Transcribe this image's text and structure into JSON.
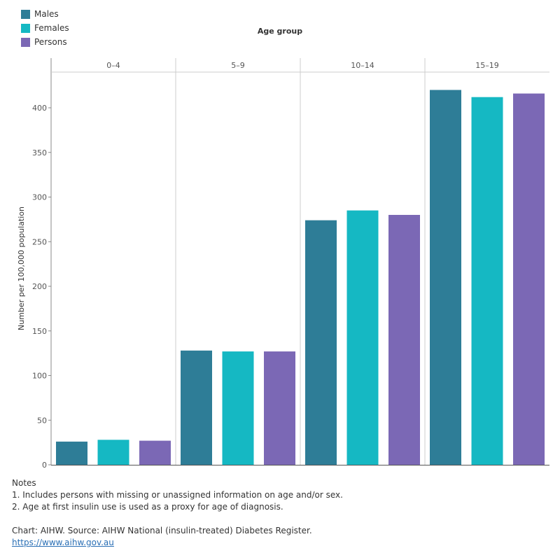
{
  "legend": {
    "items": [
      {
        "label": "Males",
        "color": "#2e7d97"
      },
      {
        "label": "Females",
        "color": "#15b8c3"
      },
      {
        "label": "Persons",
        "color": "#7b68b5"
      }
    ]
  },
  "header_title": "Age group",
  "chart_data": {
    "type": "bar",
    "title": "",
    "xlabel": "Age group",
    "ylabel": "Number per 100,000 population",
    "categories": [
      "0–4",
      "5–9",
      "10–14",
      "15–19"
    ],
    "series": [
      {
        "name": "Males",
        "color": "#2e7d97",
        "values": [
          26,
          128,
          274,
          420
        ]
      },
      {
        "name": "Females",
        "color": "#15b8c3",
        "values": [
          28,
          127,
          285,
          412
        ]
      },
      {
        "name": "Persons",
        "color": "#7b68b5",
        "values": [
          27,
          127,
          280,
          416
        ]
      }
    ],
    "ylim": [
      0,
      425
    ],
    "yticks": [
      0,
      50,
      100,
      150,
      200,
      250,
      300,
      350,
      400
    ]
  },
  "notes": {
    "heading": "Notes",
    "lines": [
      "1. Includes persons with missing or unassigned information on age and/or sex.",
      "2. Age at first insulin use is used as a proxy for age of diagnosis."
    ],
    "source": "Chart: AIHW. Source: AIHW National (insulin-treated) Diabetes Register.",
    "link": "https://www.aihw.gov.au"
  }
}
